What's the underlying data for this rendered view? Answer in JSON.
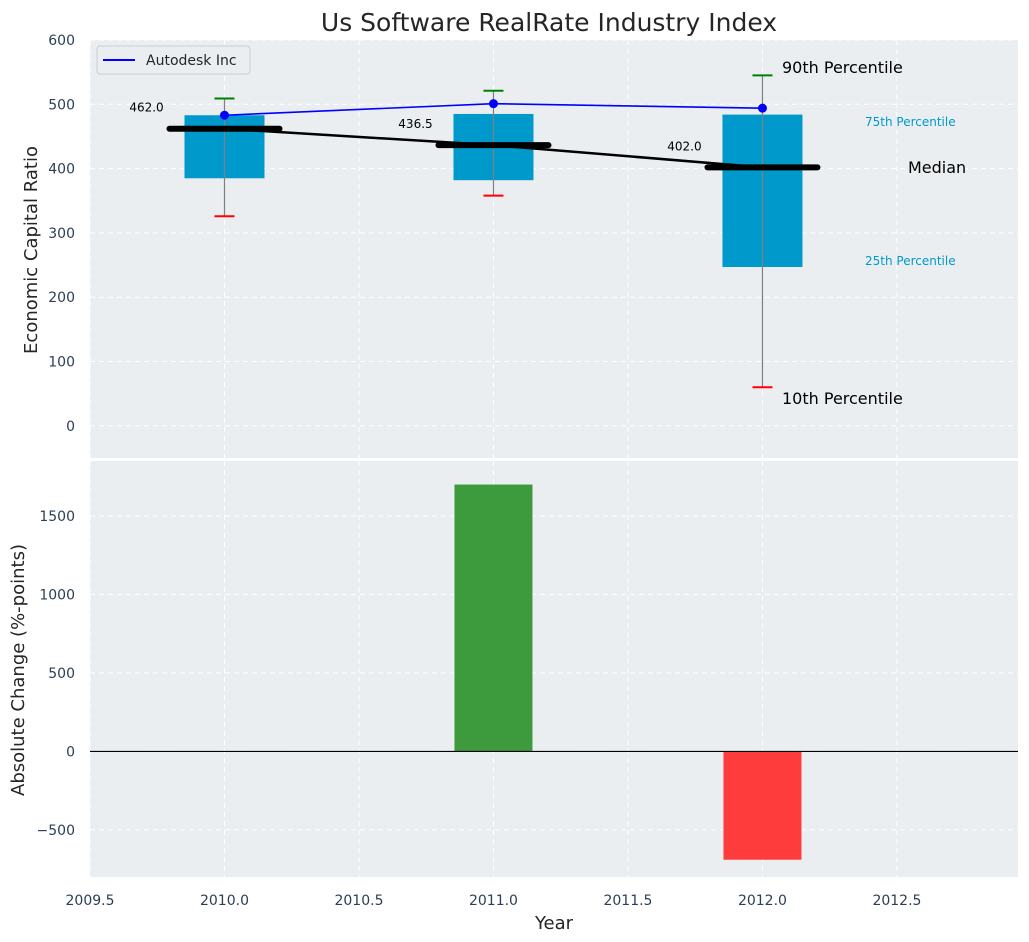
{
  "chart_data": [
    {
      "type": "box",
      "title": "Us Software RealRate Industry Index",
      "ylabel": "Economic Capital Ratio",
      "xlim": [
        2009.5,
        2012.95
      ],
      "ylim": [
        -50,
        600
      ],
      "yticks": [
        0,
        100,
        200,
        300,
        400,
        500,
        600
      ],
      "grid": true,
      "legend": {
        "position": "upper-left",
        "entries": [
          "Autodesk Inc"
        ]
      },
      "colors": {
        "box": "#0099cc",
        "median": "#000000",
        "series": "#0000ff",
        "p90_cap": "#008000",
        "p10_cap": "#ff0000",
        "whisker": "#808080",
        "background": "#eaeef0"
      },
      "percentile_labels": {
        "p90": "90th Percentile",
        "p75": "75th Percentile",
        "median": "Median",
        "p25": "25th Percentile",
        "p10": "10th Percentile"
      },
      "boxes": [
        {
          "x": 2010,
          "p10": 326,
          "p25": 385,
          "median": 462.0,
          "p75": 483,
          "p90": 509
        },
        {
          "x": 2011,
          "p10": 358,
          "p25": 382,
          "median": 436.5,
          "p75": 485,
          "p90": 521
        },
        {
          "x": 2012,
          "p10": 60,
          "p25": 247,
          "median": 402.0,
          "p75": 484,
          "p90": 545
        }
      ],
      "median_labels": [
        "462.0",
        "436.5",
        "402.0"
      ],
      "series": [
        {
          "name": "Autodesk Inc",
          "x": [
            2010,
            2011,
            2012
          ],
          "values": [
            483,
            501,
            494
          ]
        }
      ]
    },
    {
      "type": "bar",
      "xlabel": "Year",
      "ylabel": "Absolute Change (%-points)",
      "xlim": [
        2009.5,
        2012.95
      ],
      "ylim": [
        -800,
        1850
      ],
      "yticks": [
        -500,
        0,
        500,
        1000,
        1500
      ],
      "ytick_labels": [
        "−500",
        "0",
        "500",
        "1000",
        "1500"
      ],
      "xticks": [
        2009.5,
        2010.0,
        2010.5,
        2011.0,
        2011.5,
        2012.0,
        2012.5
      ],
      "xtick_labels": [
        "2009.5",
        "2010.0",
        "2010.5",
        "2011.0",
        "2011.5",
        "2012.0",
        "2012.5"
      ],
      "grid": true,
      "bars": [
        {
          "x": 2011,
          "value": 1700,
          "color": "#3d9b3d"
        },
        {
          "x": 2012,
          "value": -690,
          "color": "#ff3c3c"
        }
      ]
    }
  ]
}
